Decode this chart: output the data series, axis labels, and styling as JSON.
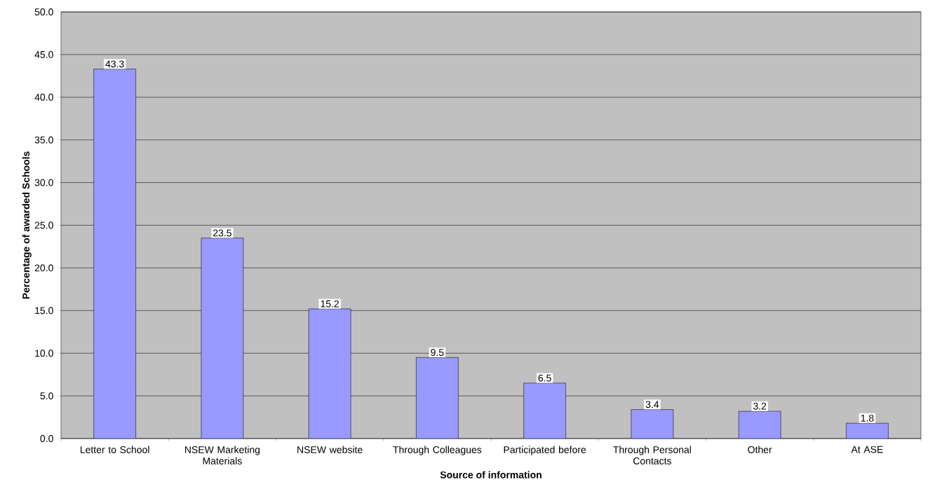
{
  "chart_data": {
    "type": "bar",
    "xlabel": "Source of information",
    "ylabel": "Percentage of awarded Schools",
    "categories": [
      "Letter to School",
      "NSEW Marketing Materials",
      "NSEW website",
      "Through Colleagues",
      "Participated before",
      "Through Personal Contacts",
      "Other",
      "At ASE"
    ],
    "values": [
      43.3,
      23.5,
      15.2,
      9.5,
      6.5,
      3.4,
      3.2,
      1.8
    ],
    "color": "#9999ff",
    "ylim": [
      0,
      50
    ],
    "yticks": [
      {
        "value": 0,
        "label": "0.0"
      },
      {
        "value": 5,
        "label": "5.0"
      },
      {
        "value": 10,
        "label": "10.0"
      },
      {
        "value": 15,
        "label": "15.0"
      },
      {
        "value": 20,
        "label": "20.0"
      },
      {
        "value": 25,
        "label": "25.0"
      },
      {
        "value": 30,
        "label": "30.0"
      },
      {
        "value": 35,
        "label": "35.0"
      },
      {
        "value": 40,
        "label": "40.0"
      },
      {
        "value": 45,
        "label": "45.0"
      },
      {
        "value": 50,
        "label": "50.0"
      }
    ],
    "grid": "y",
    "data_labels": true
  }
}
